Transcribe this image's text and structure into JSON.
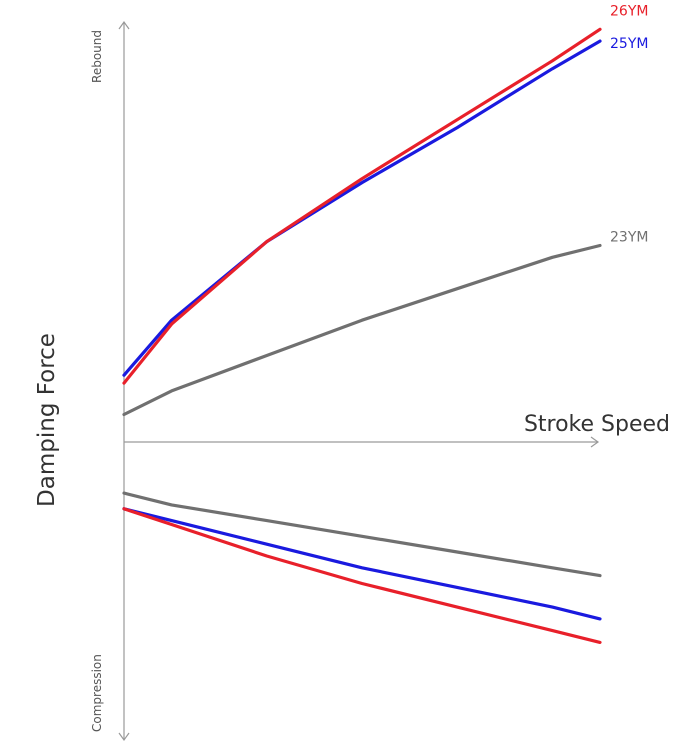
{
  "chart_data": {
    "type": "line",
    "title": "",
    "xlabel": "Stroke Speed",
    "ylabel": "Damping Force",
    "y_positive_label": "Rebound",
    "y_negative_label": "Compression",
    "grid": false,
    "legend": "inline labels at line ends (top-right)",
    "xlim": [
      0,
      1
    ],
    "ylim": [
      -1,
      1
    ],
    "series": [
      {
        "name": "26YM",
        "color": "#e8202a",
        "label_position": "rebound",
        "rebound": {
          "x": [
            0,
            0.1,
            0.3,
            0.5,
            0.7,
            0.9,
            1.0
          ],
          "y": [
            0.15,
            0.3,
            0.51,
            0.67,
            0.82,
            0.97,
            1.05
          ]
        },
        "compression": {
          "x": [
            0,
            0.1,
            0.3,
            0.5,
            0.7,
            0.9,
            1.0
          ],
          "y": [
            -0.17,
            -0.21,
            -0.29,
            -0.36,
            -0.42,
            -0.48,
            -0.51
          ]
        }
      },
      {
        "name": "25YM",
        "color": "#1a1adf",
        "label_position": "rebound",
        "rebound": {
          "x": [
            0,
            0.1,
            0.3,
            0.5,
            0.7,
            0.9,
            1.0
          ],
          "y": [
            0.17,
            0.31,
            0.51,
            0.66,
            0.8,
            0.95,
            1.02
          ]
        },
        "compression": {
          "x": [
            0,
            0.1,
            0.3,
            0.5,
            0.7,
            0.9,
            1.0
          ],
          "y": [
            -0.17,
            -0.2,
            -0.26,
            -0.32,
            -0.37,
            -0.42,
            -0.45
          ]
        }
      },
      {
        "name": "23YM",
        "color": "#707070",
        "label_position": "rebound",
        "rebound": {
          "x": [
            0,
            0.1,
            0.3,
            0.5,
            0.7,
            0.9,
            1.0
          ],
          "y": [
            0.07,
            0.13,
            0.22,
            0.31,
            0.39,
            0.47,
            0.5
          ]
        },
        "compression": {
          "x": [
            0,
            0.1,
            0.3,
            0.5,
            0.7,
            0.9,
            1.0
          ],
          "y": [
            -0.13,
            -0.16,
            -0.2,
            -0.24,
            -0.28,
            -0.32,
            -0.34
          ]
        }
      }
    ]
  }
}
